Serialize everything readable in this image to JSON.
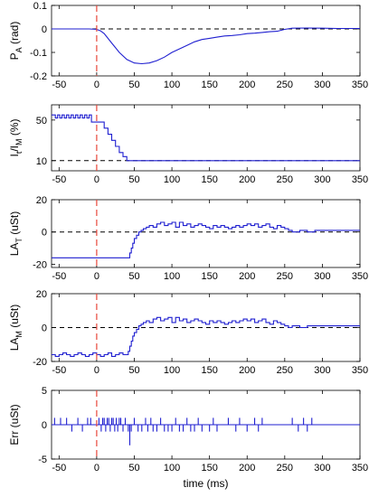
{
  "chart_data": [
    {
      "type": "line",
      "ylabel": "P",
      "ylabel_sub": "A",
      "ylabel_suffix": " (rad)",
      "xlim": [
        -60,
        350
      ],
      "ylim": [
        -0.2,
        0.1
      ],
      "yticks": [
        0.1,
        0,
        -0.1,
        -0.2
      ],
      "ytick_labels": [
        "0.1",
        "0",
        "-0.1",
        "-0.2"
      ],
      "xticks": [
        -50,
        0,
        50,
        100,
        150,
        200,
        250,
        300,
        350
      ],
      "xtick_labels": [
        "-50",
        "0",
        "50",
        "100",
        "150",
        "200",
        "250",
        "300",
        "350"
      ],
      "ref_line_y": 0,
      "event_line_x": 0,
      "series": [
        {
          "step": false,
          "x": [
            -60,
            -10,
            0,
            5,
            10,
            20,
            30,
            40,
            50,
            60,
            70,
            80,
            90,
            100,
            110,
            120,
            130,
            140,
            150,
            160,
            170,
            180,
            190,
            200,
            210,
            220,
            230,
            240,
            250,
            260,
            280,
            300,
            320,
            350
          ],
          "y": [
            0,
            0,
            -0.002,
            -0.008,
            -0.02,
            -0.06,
            -0.1,
            -0.13,
            -0.145,
            -0.148,
            -0.145,
            -0.135,
            -0.12,
            -0.1,
            -0.085,
            -0.07,
            -0.055,
            -0.045,
            -0.04,
            -0.035,
            -0.03,
            -0.028,
            -0.025,
            -0.02,
            -0.018,
            -0.015,
            -0.012,
            -0.01,
            -0.002,
            0.003,
            0.004,
            0.003,
            0.002,
            0.002
          ]
        }
      ]
    },
    {
      "type": "line",
      "ylabel": "I",
      "ylabel_sub": "t",
      "ylabel_mid": "/I",
      "ylabel_sub2": "M",
      "ylabel_suffix": " (%)",
      "xlim": [
        -60,
        350
      ],
      "ylim": [
        0,
        65
      ],
      "yticks": [
        50,
        10
      ],
      "ytick_labels": [
        "50",
        "10"
      ],
      "xticks": [
        -50,
        0,
        50,
        100,
        150,
        200,
        250,
        300,
        350
      ],
      "xtick_labels": [
        "-50",
        "0",
        "50",
        "100",
        "150",
        "200",
        "250",
        "300",
        "350"
      ],
      "ref_line_y": 10,
      "event_line_x": 0,
      "series": [
        {
          "step": true,
          "x": [
            -60,
            -55,
            -52,
            -49,
            -46,
            -43,
            -40,
            -37,
            -34,
            -31,
            -28,
            -25,
            -22,
            -19,
            -16,
            -13,
            -10,
            -7,
            0,
            10,
            15,
            20,
            25,
            30,
            35,
            40,
            350
          ],
          "y": [
            55,
            52,
            55,
            52,
            55,
            52,
            55,
            52,
            55,
            52,
            55,
            52,
            55,
            52,
            55,
            52,
            55,
            48,
            48,
            42,
            36,
            30,
            24,
            18,
            14,
            10,
            10
          ]
        }
      ]
    },
    {
      "type": "line",
      "ylabel": "LA",
      "ylabel_sub": "T",
      "ylabel_suffix": " (uSt)",
      "xlim": [
        -60,
        350
      ],
      "ylim": [
        -22,
        20
      ],
      "yticks": [
        20,
        0,
        -20
      ],
      "ytick_labels": [
        "20",
        "0",
        "-20"
      ],
      "xticks": [
        -50,
        0,
        50,
        100,
        150,
        200,
        250,
        300,
        350
      ],
      "xtick_labels": [
        "-50",
        "0",
        "50",
        "100",
        "150",
        "200",
        "250",
        "300",
        "350"
      ],
      "ref_line_y": 0,
      "event_line_x": 0,
      "series": [
        {
          "step": true,
          "x": [
            -60,
            42,
            44,
            46,
            48,
            50,
            53,
            56,
            59,
            62,
            66,
            70,
            75,
            80,
            85,
            90,
            95,
            100,
            105,
            110,
            115,
            120,
            125,
            130,
            135,
            140,
            145,
            150,
            155,
            160,
            165,
            170,
            175,
            180,
            185,
            190,
            195,
            200,
            205,
            210,
            215,
            220,
            225,
            230,
            235,
            240,
            245,
            250,
            255,
            260,
            270,
            280,
            290,
            300,
            350
          ],
          "y": [
            -16,
            -16,
            -13,
            -10,
            -7,
            -4,
            -2,
            0,
            1,
            2,
            3,
            4,
            3,
            5,
            6,
            4,
            5,
            6,
            3,
            6,
            4,
            5,
            3,
            4,
            5,
            4,
            3,
            2,
            4,
            3,
            4,
            3,
            2,
            3,
            4,
            3,
            4,
            5,
            4,
            5,
            3,
            4,
            5,
            3,
            2,
            4,
            3,
            2,
            1,
            0,
            1,
            0,
            1,
            1,
            1
          ]
        }
      ]
    },
    {
      "type": "line",
      "ylabel": "LA",
      "ylabel_sub": "M",
      "ylabel_suffix": " (uSt)",
      "xlim": [
        -60,
        350
      ],
      "ylim": [
        -20,
        20
      ],
      "yticks": [
        20,
        0,
        -20
      ],
      "ytick_labels": [
        "20",
        "0",
        "-20"
      ],
      "xticks": [
        -50,
        0,
        50,
        100,
        150,
        200,
        250,
        300,
        350
      ],
      "xtick_labels": [
        "-50",
        "0",
        "50",
        "100",
        "150",
        "200",
        "250",
        "300",
        "350"
      ],
      "ref_line_y": 0,
      "event_line_x": 0,
      "series": [
        {
          "step": true,
          "x": [
            -60,
            -55,
            -50,
            -45,
            -40,
            -35,
            -30,
            -25,
            -20,
            -15,
            -10,
            -5,
            0,
            5,
            10,
            15,
            20,
            25,
            30,
            35,
            40,
            42,
            44,
            46,
            48,
            50,
            53,
            56,
            59,
            62,
            66,
            70,
            75,
            80,
            85,
            90,
            95,
            100,
            105,
            110,
            115,
            120,
            125,
            130,
            135,
            140,
            145,
            150,
            155,
            160,
            165,
            170,
            175,
            180,
            185,
            190,
            195,
            200,
            205,
            210,
            215,
            220,
            225,
            230,
            235,
            240,
            245,
            250,
            255,
            260,
            270,
            280,
            290,
            300,
            350
          ],
          "y": [
            -16,
            -17,
            -16,
            -15,
            -16,
            -17,
            -16,
            -15,
            -16,
            -17,
            -16,
            -15,
            -16,
            -17,
            -16,
            -15,
            -17,
            -16,
            -15,
            -16,
            -16,
            -14,
            -11,
            -8,
            -5,
            -3,
            -1,
            1,
            2,
            3,
            4,
            3,
            5,
            6,
            4,
            5,
            6,
            3,
            6,
            4,
            5,
            3,
            4,
            5,
            4,
            3,
            2,
            4,
            3,
            4,
            3,
            2,
            3,
            4,
            3,
            4,
            5,
            4,
            5,
            3,
            4,
            5,
            3,
            2,
            4,
            3,
            2,
            1,
            0,
            1,
            0,
            1,
            1,
            1,
            1
          ]
        }
      ]
    },
    {
      "type": "line",
      "ylabel": "Err",
      "ylabel_suffix": " (uSt)",
      "xlabel": "time (ms)",
      "xlim": [
        -60,
        350
      ],
      "ylim": [
        -5,
        5
      ],
      "yticks": [
        5,
        0,
        -5
      ],
      "ytick_labels": [
        "5",
        "0",
        "-5"
      ],
      "xticks": [
        -50,
        0,
        50,
        100,
        150,
        200,
        250,
        300,
        350
      ],
      "xtick_labels": [
        "-50",
        "0",
        "50",
        "100",
        "150",
        "200",
        "250",
        "300",
        "350"
      ],
      "event_line_x": 0,
      "series": [
        {
          "spikes": true,
          "baseline": 0,
          "x": [
            -56,
            -48,
            -40,
            -33,
            -25,
            -19,
            -12,
            -8,
            3,
            6,
            8,
            10,
            12,
            14,
            16,
            18,
            20,
            22,
            24,
            26,
            28,
            30,
            32,
            35,
            38,
            42,
            44,
            46,
            50,
            55,
            60,
            65,
            68,
            72,
            75,
            80,
            85,
            90,
            95,
            100,
            105,
            110,
            115,
            120,
            125,
            130,
            135,
            140,
            150,
            155,
            160,
            175,
            185,
            190,
            200,
            210,
            215,
            220,
            260,
            268,
            275,
            280,
            286
          ],
          "y": [
            1,
            1,
            1,
            -1,
            1,
            -1,
            1,
            1,
            1,
            -1,
            1,
            1,
            -1,
            1,
            1,
            -1,
            1,
            1,
            -1,
            1,
            -1,
            1,
            1,
            -1,
            1,
            -1,
            -3,
            -1,
            1,
            -1,
            -1,
            1,
            -1,
            1,
            -1,
            -1,
            1,
            -1,
            -1,
            -1,
            1,
            -1,
            -1,
            1,
            -1,
            -1,
            1,
            -1,
            -1,
            1,
            -1,
            1,
            -1,
            1,
            -1,
            1,
            -1,
            1,
            1,
            -1,
            1,
            -1,
            1
          ]
        }
      ]
    }
  ]
}
